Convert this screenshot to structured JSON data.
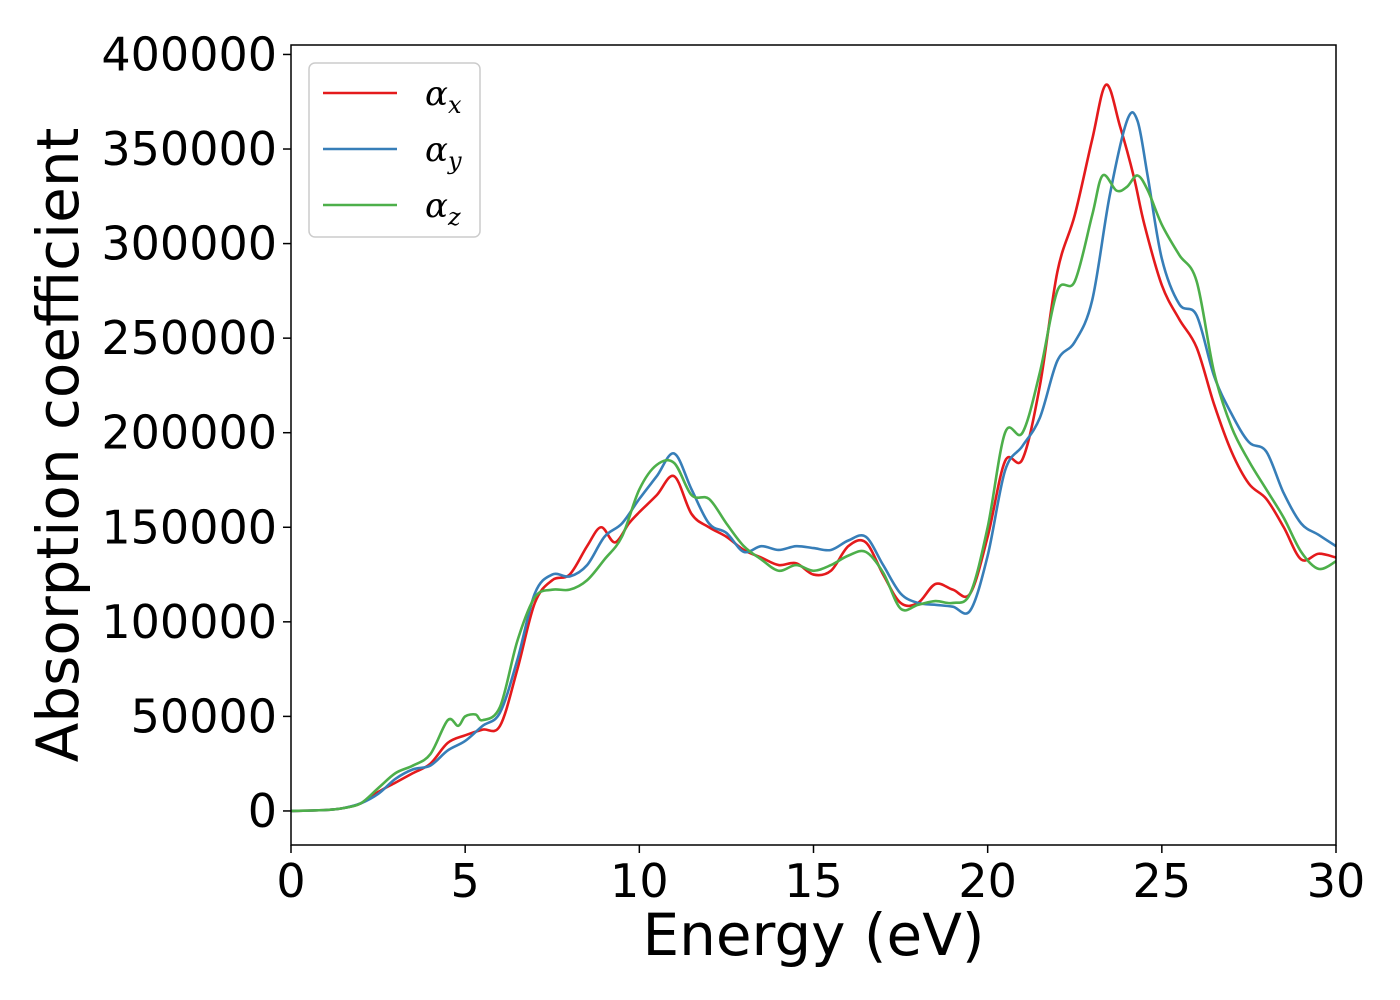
{
  "chart_data": {
    "type": "line",
    "title": "",
    "xlabel": "Energy (eV)",
    "ylabel": "Absorption coefficient",
    "xlim": [
      0,
      30
    ],
    "ylim": [
      -18000,
      405000
    ],
    "xticks": [
      0,
      5,
      10,
      15,
      20,
      25,
      30
    ],
    "xtick_labels": [
      "0",
      "5",
      "10",
      "15",
      "20",
      "25",
      "30"
    ],
    "yticks": [
      0,
      50000,
      100000,
      150000,
      200000,
      250000,
      300000,
      350000,
      400000
    ],
    "ytick_labels": [
      "0",
      "50000",
      "100000",
      "150000",
      "200000",
      "250000",
      "300000",
      "350000",
      "400000"
    ],
    "grid": false,
    "legend_position": "top-left",
    "series": [
      {
        "name": "α_x",
        "label_main": "α",
        "label_sub": "x",
        "color": "#e41a1c",
        "x": [
          0,
          1,
          1.5,
          2,
          2.5,
          3,
          3.5,
          4,
          4.5,
          5,
          5.5,
          6,
          6.5,
          7,
          7.5,
          8,
          8.5,
          8.9,
          9.3,
          9.7,
          10,
          10.5,
          11,
          11.5,
          12,
          12.5,
          13,
          13.5,
          14,
          14.5,
          15,
          15.5,
          16,
          16.5,
          17,
          17.5,
          18,
          18.5,
          19,
          19.5,
          20,
          20.5,
          21,
          21.5,
          22,
          22.5,
          23,
          23.4,
          23.8,
          24.2,
          24.5,
          25,
          25.5,
          26,
          26.5,
          27,
          27.5,
          28,
          28.5,
          29,
          29.5,
          30
        ],
        "y": [
          0,
          500,
          1500,
          4000,
          10000,
          15000,
          20000,
          25000,
          36000,
          40000,
          43000,
          45000,
          75000,
          110000,
          122000,
          125000,
          140000,
          150000,
          142000,
          152000,
          158000,
          167000,
          177000,
          157000,
          150000,
          145000,
          138000,
          134000,
          130000,
          131000,
          125000,
          127000,
          140000,
          142000,
          125000,
          110000,
          110000,
          120000,
          117000,
          115000,
          145000,
          185000,
          186000,
          225000,
          285000,
          315000,
          355000,
          384000,
          362000,
          335000,
          310000,
          278000,
          260000,
          245000,
          215000,
          190000,
          173000,
          165000,
          150000,
          133000,
          136000,
          134000
        ]
      },
      {
        "name": "α_y",
        "label_main": "α",
        "label_sub": "y",
        "color": "#377eb8",
        "x": [
          0,
          1,
          1.5,
          2,
          2.5,
          3,
          3.5,
          4,
          4.5,
          5,
          5.5,
          6,
          6.5,
          7,
          7.5,
          8,
          8.5,
          9,
          9.5,
          10,
          10.5,
          11,
          11.5,
          12,
          12.5,
          13,
          13.5,
          14,
          14.5,
          15,
          15.5,
          16,
          16.5,
          17,
          17.5,
          18,
          18.5,
          19,
          19.5,
          20,
          20.5,
          21,
          21.5,
          22,
          22.5,
          23,
          23.5,
          24,
          24.3,
          24.6,
          25,
          25.5,
          26,
          26.5,
          27,
          27.5,
          28,
          28.5,
          29,
          29.5,
          30
        ],
        "y": [
          0,
          500,
          1500,
          4000,
          9000,
          17000,
          22000,
          24000,
          32000,
          37000,
          45000,
          52000,
          80000,
          115000,
          125000,
          124000,
          130000,
          145000,
          152000,
          165000,
          177000,
          189000,
          170000,
          152000,
          147000,
          137000,
          140000,
          138000,
          140000,
          139000,
          138000,
          143000,
          145000,
          130000,
          115000,
          110000,
          109000,
          108000,
          106000,
          135000,
          180000,
          193000,
          208000,
          238000,
          248000,
          270000,
          325000,
          365000,
          365000,
          335000,
          292000,
          268000,
          262000,
          230000,
          210000,
          195000,
          190000,
          168000,
          152000,
          146000,
          140000
        ]
      },
      {
        "name": "α_z",
        "label_main": "α",
        "label_sub": "z",
        "color": "#4daf4a",
        "x": [
          0,
          1,
          1.5,
          2,
          2.5,
          3,
          3.5,
          4,
          4.5,
          4.8,
          5,
          5.3,
          5.5,
          6,
          6.5,
          7,
          7.5,
          8,
          8.5,
          9,
          9.5,
          10,
          10.5,
          11,
          11.5,
          12,
          12.5,
          13,
          13.5,
          14,
          14.5,
          15,
          15.5,
          16,
          16.5,
          17,
          17.5,
          18,
          18.5,
          19,
          19.5,
          20,
          20.5,
          21,
          21.5,
          22,
          22.5,
          23,
          23.3,
          23.7,
          24,
          24.3,
          24.6,
          25,
          25.5,
          26,
          26.5,
          27,
          27.5,
          28,
          28.5,
          29,
          29.5,
          30
        ],
        "y": [
          0,
          500,
          1500,
          4000,
          12000,
          20000,
          24000,
          30000,
          48000,
          45000,
          50000,
          51000,
          48000,
          55000,
          90000,
          113000,
          117000,
          117000,
          122000,
          133000,
          145000,
          170000,
          183000,
          184000,
          167000,
          165000,
          152000,
          140000,
          133000,
          127000,
          130000,
          127000,
          130000,
          135000,
          137000,
          126000,
          107000,
          109000,
          111000,
          110000,
          115000,
          150000,
          200000,
          200000,
          232000,
          275000,
          280000,
          315000,
          336000,
          328000,
          330000,
          336000,
          328000,
          310000,
          294000,
          280000,
          232000,
          203000,
          185000,
          170000,
          155000,
          137000,
          128000,
          132000
        ]
      }
    ]
  }
}
